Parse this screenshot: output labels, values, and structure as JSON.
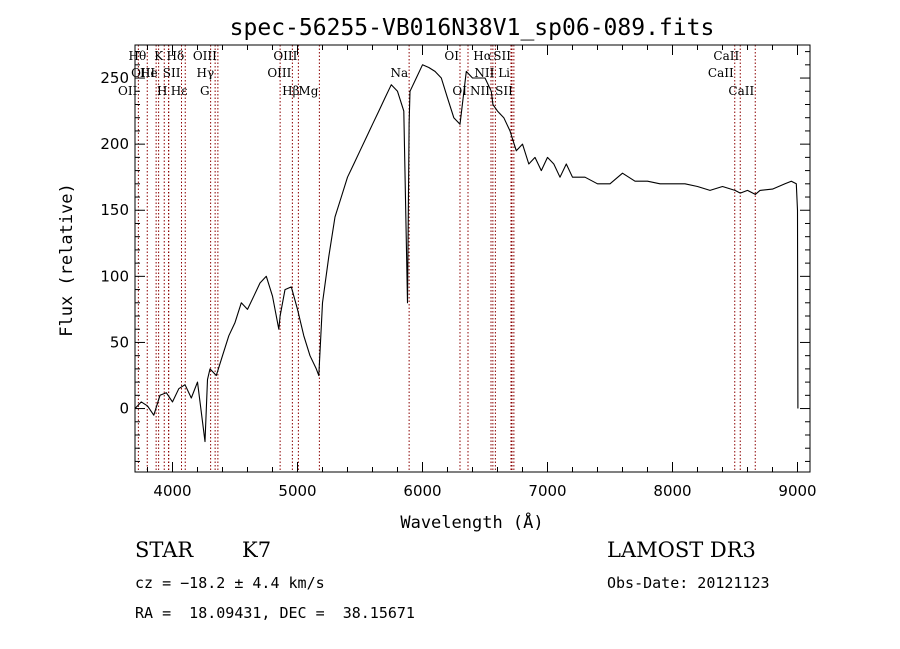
{
  "chart_data": {
    "type": "line",
    "title": "spec-56255-VB016N38V1_sp06-089.fits",
    "xlabel": "Wavelength (Å)",
    "ylabel": "Flux (relative)",
    "xlim": [
      3700,
      9100
    ],
    "ylim": [
      -48,
      275
    ],
    "xticks": [
      4000,
      5000,
      6000,
      7000,
      8000,
      9000
    ],
    "yticks": [
      0,
      50,
      100,
      150,
      200,
      250
    ],
    "grid": false,
    "line_color": "#000000",
    "marker_color": "#8b0000",
    "series": [
      {
        "x": [
          3700,
          3750,
          3800,
          3850,
          3900,
          3950,
          4000,
          4050,
          4100,
          4150,
          4200,
          4260,
          4280,
          4300,
          4350,
          4400,
          4450,
          4500,
          4550,
          4600,
          4650,
          4700,
          4750,
          4800,
          4850,
          4861,
          4900,
          4950,
          5000,
          5050,
          5100,
          5150,
          5170,
          5200,
          5250,
          5300,
          5350,
          5400,
          5450,
          5500,
          5550,
          5600,
          5650,
          5700,
          5750,
          5800,
          5850,
          5880,
          5893,
          5900,
          5950,
          6000,
          6050,
          6100,
          6150,
          6200,
          6250,
          6300,
          6350,
          6400,
          6450,
          6500,
          6550,
          6563,
          6600,
          6650,
          6700,
          6750,
          6800,
          6850,
          6900,
          6950,
          7000,
          7050,
          7100,
          7150,
          7200,
          7300,
          7400,
          7500,
          7600,
          7700,
          7800,
          7900,
          8000,
          8100,
          8200,
          8300,
          8400,
          8500,
          8542,
          8600,
          8662,
          8700,
          8800,
          8900,
          8950,
          8990,
          9000,
          9003
        ],
        "y": [
          0,
          5,
          2,
          -5,
          10,
          12,
          5,
          15,
          18,
          8,
          20,
          -25,
          22,
          30,
          25,
          40,
          55,
          65,
          80,
          75,
          85,
          95,
          100,
          85,
          60,
          70,
          90,
          92,
          75,
          55,
          40,
          30,
          25,
          80,
          115,
          145,
          160,
          175,
          185,
          195,
          205,
          215,
          225,
          235,
          245,
          240,
          225,
          80,
          215,
          240,
          250,
          260,
          258,
          255,
          250,
          235,
          220,
          215,
          255,
          250,
          250,
          250,
          240,
          230,
          225,
          220,
          210,
          195,
          200,
          185,
          190,
          180,
          190,
          185,
          175,
          185,
          175,
          175,
          170,
          170,
          178,
          172,
          172,
          170,
          170,
          170,
          168,
          165,
          168,
          165,
          163,
          165,
          162,
          165,
          166,
          170,
          172,
          170,
          150,
          0
        ]
      }
    ],
    "line_markers": [
      {
        "label": "Hθ",
        "x": 3798,
        "row": 0,
        "side": "left"
      },
      {
        "label": "OIII",
        "x": 3869,
        "row": 1,
        "side": "left"
      },
      {
        "label": "OII",
        "x": 3727,
        "row": 2,
        "side": "left"
      },
      {
        "label": "He",
        "x": 3889,
        "row": 1,
        "side": "left"
      },
      {
        "label": "K",
        "x": 3934,
        "row": 0,
        "side": "left"
      },
      {
        "label": "H",
        "x": 3968,
        "row": 2,
        "side": "left"
      },
      {
        "label": "Hε",
        "x": 3970,
        "row": 2,
        "side": "right"
      },
      {
        "label": "SII",
        "x": 4072,
        "row": 1,
        "side": "left"
      },
      {
        "label": "Hδ",
        "x": 4102,
        "row": 0,
        "side": "left"
      },
      {
        "label": "G",
        "x": 4305,
        "row": 2,
        "side": "left"
      },
      {
        "label": "Hγ",
        "x": 4341,
        "row": 1,
        "side": "left"
      },
      {
        "label": "OIII",
        "x": 4363,
        "row": 0,
        "side": "left"
      },
      {
        "label": "Hβ",
        "x": 4861,
        "row": 2,
        "side": "right"
      },
      {
        "label": "OIII",
        "x": 4959,
        "row": 1,
        "side": "left"
      },
      {
        "label": "OIII",
        "x": 5007,
        "row": 0,
        "side": "left"
      },
      {
        "label": "Mg",
        "x": 5175,
        "row": 2,
        "side": "left"
      },
      {
        "label": "Na",
        "x": 5893,
        "row": 1,
        "side": "left"
      },
      {
        "label": "OI",
        "x": 6300,
        "row": 0,
        "side": "left"
      },
      {
        "label": "OI",
        "x": 6364,
        "row": 2,
        "side": "left"
      },
      {
        "label": "NII",
        "x": 6548,
        "row": 2,
        "side": "left"
      },
      {
        "label": "Hα",
        "x": 6563,
        "row": 0,
        "side": "left"
      },
      {
        "label": "NII",
        "x": 6583,
        "row": 1,
        "side": "left"
      },
      {
        "label": "Li",
        "x": 6708,
        "row": 1,
        "side": "left"
      },
      {
        "label": "SII",
        "x": 6716,
        "row": 0,
        "side": "left"
      },
      {
        "label": "SII",
        "x": 6731,
        "row": 2,
        "side": "left"
      },
      {
        "label": "CaII",
        "x": 8498,
        "row": 1,
        "side": "left"
      },
      {
        "label": "CaII",
        "x": 8542,
        "row": 0,
        "side": "left"
      },
      {
        "label": "CaII",
        "x": 8662,
        "row": 2,
        "side": "left"
      }
    ]
  },
  "info": {
    "class_label": "STAR",
    "subclass": "K7",
    "survey": "LAMOST DR3",
    "redshift": "cz = −18.2 ± 4.4 km/s",
    "obs_date": "Obs-Date: 20121123",
    "coords": "RA =  18.09431, DEC =  38.15671"
  }
}
